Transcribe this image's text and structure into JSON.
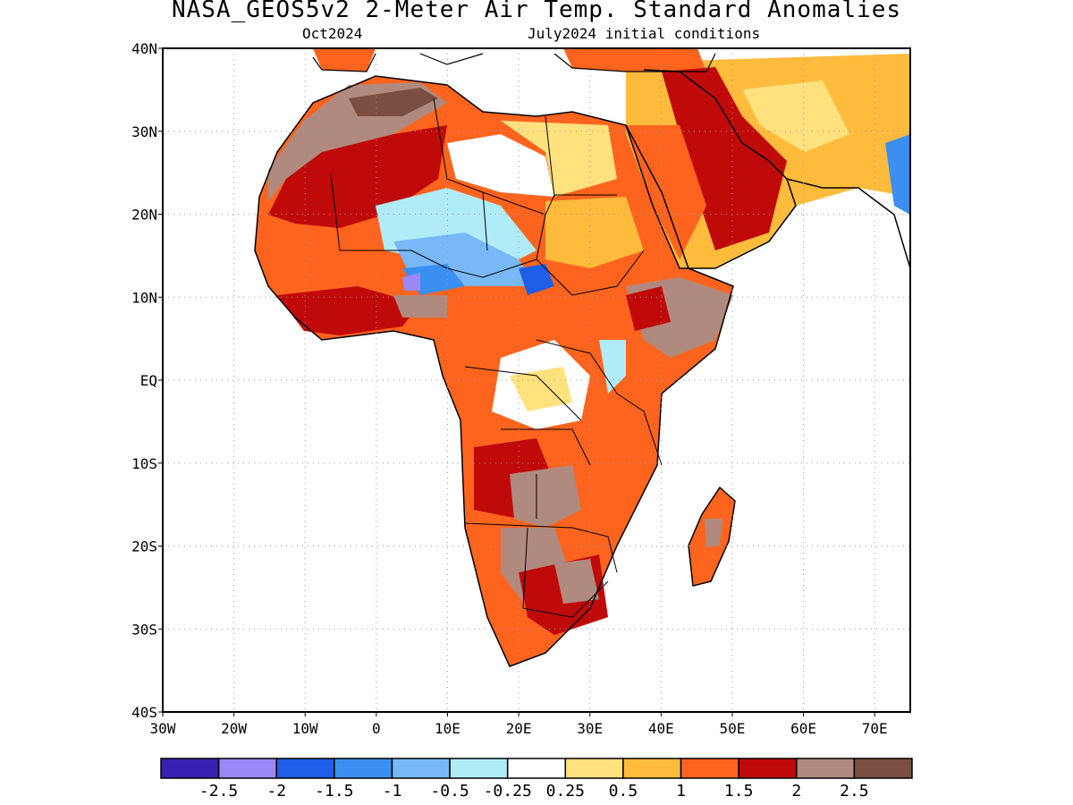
{
  "title": "NASA_GEOS5v2 2-Meter Air Temp. Standard Anomalies",
  "subtitle_left": "Oct2024",
  "subtitle_right": "July2024 initial conditions",
  "lat_labels": [
    "40N",
    "30N",
    "20N",
    "10N",
    "EQ",
    "10S",
    "20S",
    "30S",
    "40S"
  ],
  "lon_labels": [
    "30W",
    "20W",
    "10W",
    "0",
    "10E",
    "20E",
    "30E",
    "40E",
    "50E",
    "60E",
    "70E"
  ],
  "colorbar": {
    "colors": [
      "#3a1fb4",
      "#9b87f5",
      "#1f5ee6",
      "#3b8ff0",
      "#78b8f6",
      "#b0ecf8",
      "#ffffff",
      "#ffe17e",
      "#ffbb3c",
      "#ff641e",
      "#c00a0a",
      "#b08a7e",
      "#7a4e40"
    ],
    "labels": [
      "-2.5",
      "-2",
      "-1.5",
      "-1",
      "-0.5",
      "-0.25",
      "0.25",
      "0.5",
      "1",
      "1.5",
      "2",
      "2.5"
    ]
  }
}
